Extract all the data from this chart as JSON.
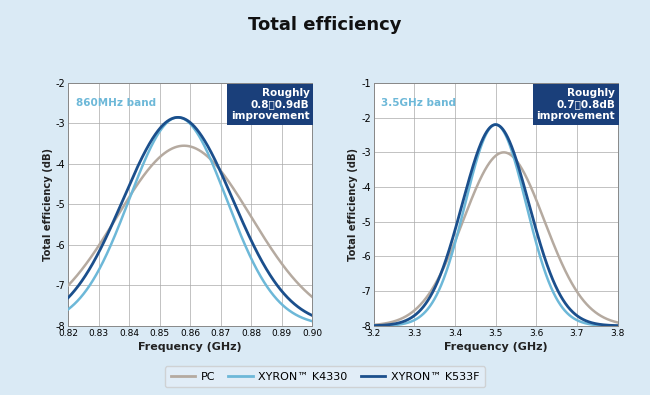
{
  "title": "Total efficiency",
  "title_fontsize": 13,
  "bg_color": "#daeaf5",
  "plot_bg_color": "#ffffff",
  "grid_color": "#aaaaaa",
  "left_plot": {
    "xlabel": "Frequency (GHz)",
    "ylabel": "Total efficiency (dB)",
    "xlim": [
      0.82,
      0.9
    ],
    "ylim": [
      -8,
      -2
    ],
    "xticks": [
      0.82,
      0.83,
      0.84,
      0.85,
      0.86,
      0.87,
      0.88,
      0.89,
      0.9
    ],
    "yticks": [
      -8,
      -7,
      -6,
      -5,
      -4,
      -3,
      -2
    ],
    "band_label": "860MHz band",
    "box_text": "Roughly\n0.8〜0.9dB\nimprovement",
    "pc_peak_x": 0.858,
    "pc_peak_y": -3.55,
    "pc_sigma": 0.022,
    "k4330_peak_x": 0.856,
    "k4330_peak_y": -2.85,
    "k4330_sigma": 0.016,
    "k533f_peak_x": 0.856,
    "k533f_peak_y": -2.85,
    "k533f_sigma": 0.018
  },
  "right_plot": {
    "xlabel": "Frequency (GHz)",
    "ylabel": "Total efficiency (dB)",
    "xlim": [
      3.2,
      3.8
    ],
    "ylim": [
      -8,
      -1
    ],
    "xticks": [
      3.2,
      3.3,
      3.4,
      3.5,
      3.6,
      3.7,
      3.8
    ],
    "yticks": [
      -8,
      -7,
      -6,
      -5,
      -4,
      -3,
      -2,
      -1
    ],
    "band_label": "3.5GHz band",
    "box_text": "Roughly\n0.7〜0.8dB\nimprovement",
    "pc_peak_x": 3.52,
    "pc_peak_y": -3.0,
    "pc_sigma": 0.1,
    "k4330_peak_x": 3.5,
    "k4330_peak_y": -2.2,
    "k4330_sigma": 0.075,
    "k533f_peak_x": 3.5,
    "k533f_peak_y": -2.2,
    "k533f_sigma": 0.082
  },
  "colors": {
    "pc": "#b5aaa0",
    "k4330": "#6db8d8",
    "k533f": "#1b4f8c"
  },
  "legend_labels": [
    "PC",
    "XYRON™ K4330",
    "XYRON™ K533F"
  ],
  "box_color": "#1a3f7a",
  "box_text_color": "#ffffff"
}
